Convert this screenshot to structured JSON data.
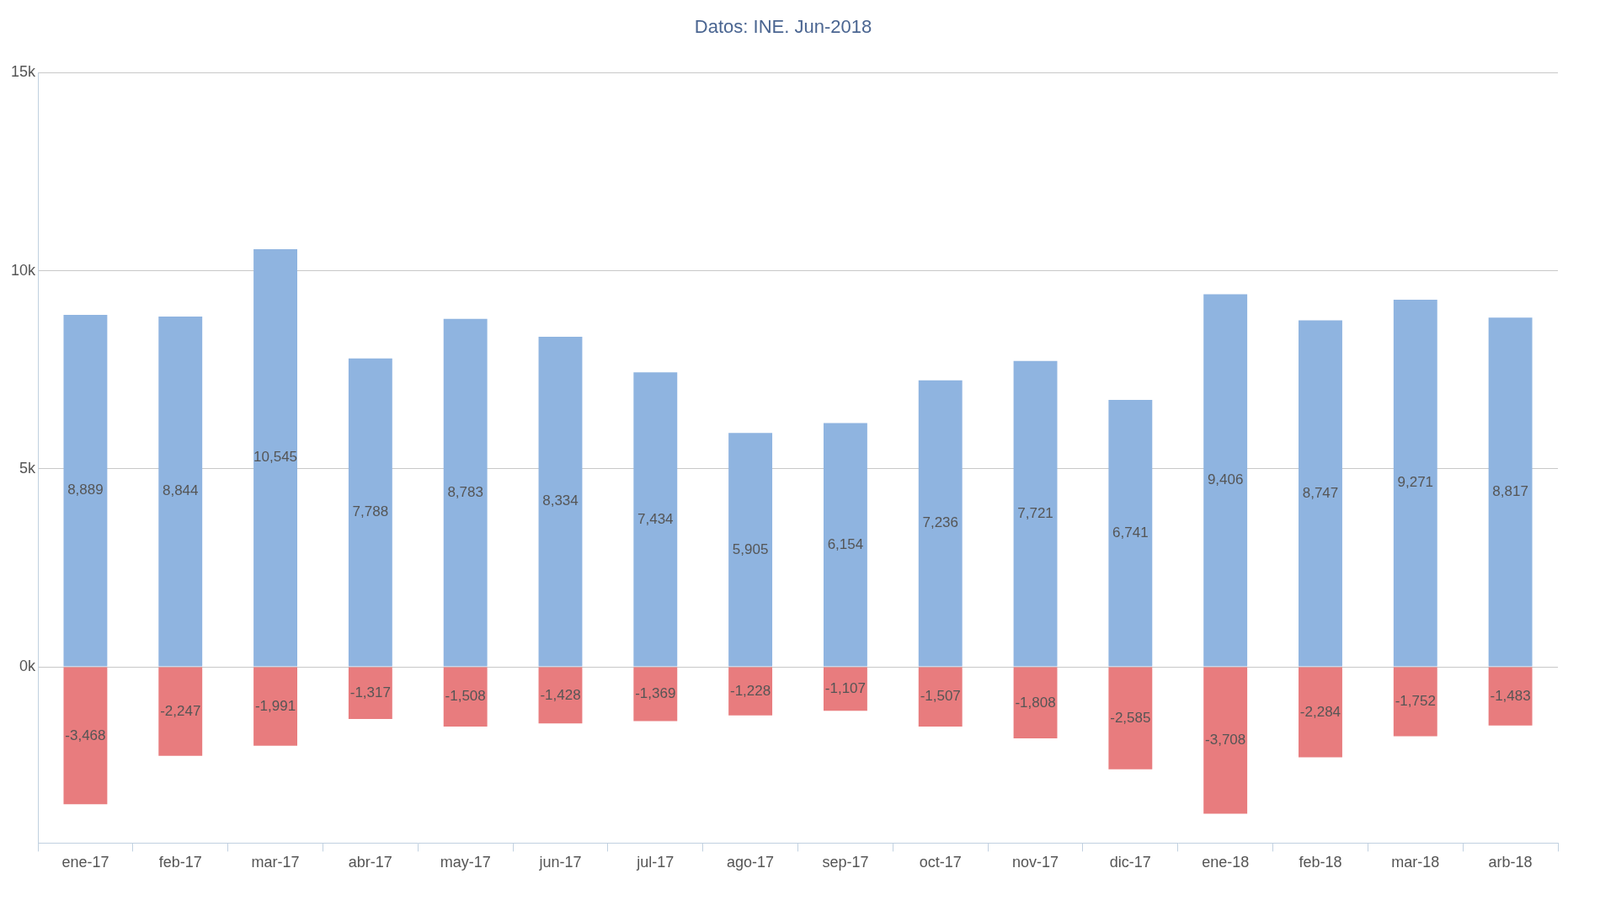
{
  "chart_data": {
    "type": "bar",
    "title": "Datos: INE. Jun-2018",
    "categories": [
      "ene-17",
      "feb-17",
      "mar-17",
      "abr-17",
      "may-17",
      "jun-17",
      "jul-17",
      "ago-17",
      "sep-17",
      "oct-17",
      "nov-17",
      "dic-17",
      "ene-18",
      "feb-18",
      "mar-18",
      "arb-18"
    ],
    "series": [
      {
        "color": "#8fb4e0",
        "values": [
          8889,
          8844,
          10545,
          7788,
          8783,
          8334,
          7434,
          5905,
          6154,
          7236,
          7721,
          6741,
          9406,
          8747,
          9271,
          8817
        ],
        "value_labels": [
          "8,889",
          "8,844",
          "10,545",
          "7,788",
          "8,783",
          "8,334",
          "7,434",
          "5,905",
          "6,154",
          "7,236",
          "7,721",
          "6,741",
          "9,406",
          "8,747",
          "9,271",
          "8,817"
        ]
      },
      {
        "color": "#e87c7e",
        "values": [
          -3468,
          -2247,
          -1991,
          -1317,
          -1508,
          -1428,
          -1369,
          -1228,
          -1107,
          -1507,
          -1808,
          -2585,
          -3708,
          -2284,
          -1752,
          -1483
        ],
        "value_labels": [
          "-3,468",
          "-2,247",
          "-1,991",
          "-1,317",
          "-1,508",
          "-1,428",
          "-1,369",
          "-1,228",
          "-1,107",
          "-1,507",
          "-1,808",
          "-2,585",
          "-3,708",
          "-2,284",
          "-1,752",
          "-1,483"
        ]
      }
    ],
    "ylim": [
      -4450,
      15000
    ],
    "yticks": [
      {
        "value": 0,
        "label": "0k"
      },
      {
        "value": 5000,
        "label": "5k"
      },
      {
        "value": 10000,
        "label": "10k"
      },
      {
        "value": 15000,
        "label": "15k"
      }
    ],
    "grid": true,
    "stacked": true,
    "data_labels": true
  }
}
